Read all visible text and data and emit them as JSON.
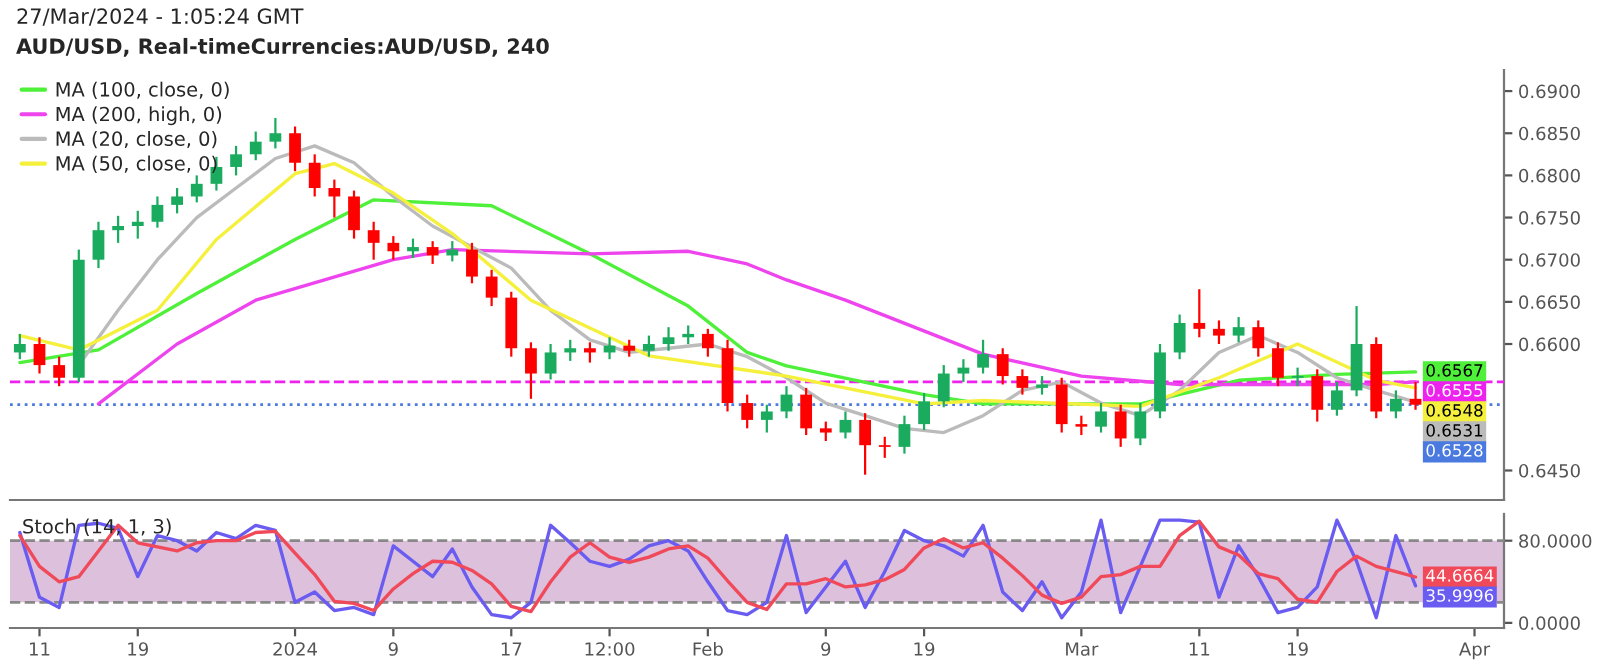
{
  "chart_data": [
    {
      "type": "candlestick",
      "title": "AUD/USD, Real-timeCurrencies:AUD/USD, 240",
      "subtitle": "27/Mar/2024 - 1:05:24 GMT",
      "categories": [
        null,
        null,
        null,
        null,
        null,
        null,
        null,
        null,
        null,
        null,
        null,
        null,
        null,
        null,
        null,
        null,
        null,
        null,
        null,
        null,
        null,
        null,
        null,
        null,
        null,
        null,
        null,
        null,
        null,
        null,
        null,
        null,
        null,
        null,
        null,
        null,
        null,
        null,
        null,
        null,
        null,
        null,
        null,
        null,
        null,
        null,
        null,
        null,
        null,
        null,
        null,
        null,
        null,
        null,
        null,
        null,
        null,
        null,
        null,
        null,
        null,
        null,
        null,
        null,
        null,
        null,
        null,
        null,
        null,
        null,
        null,
        null,
        null,
        null,
        null,
        null
      ],
      "ohlc": [
        [
          0.659,
          0.6612,
          0.6582,
          0.66
        ],
        [
          0.66,
          0.6608,
          0.6565,
          0.6575
        ],
        [
          0.6575,
          0.6585,
          0.655,
          0.656
        ],
        [
          0.656,
          0.6712,
          0.6555,
          0.67
        ],
        [
          0.67,
          0.6745,
          0.669,
          0.6735
        ],
        [
          0.6735,
          0.6752,
          0.672,
          0.674
        ],
        [
          0.674,
          0.6758,
          0.6725,
          0.6745
        ],
        [
          0.6745,
          0.6775,
          0.6738,
          0.6765
        ],
        [
          0.6765,
          0.6785,
          0.6755,
          0.6775
        ],
        [
          0.6775,
          0.68,
          0.6768,
          0.679
        ],
        [
          0.679,
          0.6822,
          0.6782,
          0.681
        ],
        [
          0.681,
          0.6835,
          0.68,
          0.6825
        ],
        [
          0.6825,
          0.6852,
          0.6818,
          0.684
        ],
        [
          0.684,
          0.6868,
          0.6832,
          0.685
        ],
        [
          0.685,
          0.6858,
          0.6805,
          0.6815
        ],
        [
          0.6815,
          0.6825,
          0.6775,
          0.6785
        ],
        [
          0.6785,
          0.6795,
          0.675,
          0.6775
        ],
        [
          0.6775,
          0.6782,
          0.6725,
          0.6735
        ],
        [
          0.6735,
          0.6745,
          0.67,
          0.672
        ],
        [
          0.672,
          0.6728,
          0.67,
          0.671
        ],
        [
          0.671,
          0.6725,
          0.6702,
          0.6715
        ],
        [
          0.6715,
          0.6722,
          0.6695,
          0.6705
        ],
        [
          0.6705,
          0.6722,
          0.6698,
          0.6712
        ],
        [
          0.6712,
          0.672,
          0.6672,
          0.668
        ],
        [
          0.668,
          0.6688,
          0.6645,
          0.6655
        ],
        [
          0.6655,
          0.6662,
          0.6585,
          0.6595
        ],
        [
          0.6595,
          0.6602,
          0.6535,
          0.6565
        ],
        [
          0.6565,
          0.66,
          0.6558,
          0.659
        ],
        [
          0.659,
          0.6605,
          0.658,
          0.6595
        ],
        [
          0.6595,
          0.6602,
          0.6578,
          0.659
        ],
        [
          0.659,
          0.6608,
          0.6582,
          0.6598
        ],
        [
          0.6598,
          0.6605,
          0.6585,
          0.6592
        ],
        [
          0.6592,
          0.661,
          0.6585,
          0.66
        ],
        [
          0.66,
          0.662,
          0.6592,
          0.6608
        ],
        [
          0.6608,
          0.6622,
          0.66,
          0.6612
        ],
        [
          0.6612,
          0.6618,
          0.6585,
          0.6595
        ],
        [
          0.6595,
          0.6605,
          0.652,
          0.653
        ],
        [
          0.653,
          0.654,
          0.65,
          0.651
        ],
        [
          0.651,
          0.6528,
          0.6495,
          0.652
        ],
        [
          0.652,
          0.655,
          0.6512,
          0.654
        ],
        [
          0.654,
          0.6548,
          0.6492,
          0.65
        ],
        [
          0.65,
          0.6508,
          0.6485,
          0.6495
        ],
        [
          0.6495,
          0.652,
          0.6488,
          0.651
        ],
        [
          0.651,
          0.6518,
          0.6445,
          0.648
        ],
        [
          0.648,
          0.649,
          0.6465,
          0.6478
        ],
        [
          0.6478,
          0.6515,
          0.647,
          0.6505
        ],
        [
          0.6505,
          0.6542,
          0.6498,
          0.6532
        ],
        [
          0.6532,
          0.6575,
          0.6525,
          0.6565
        ],
        [
          0.6565,
          0.6582,
          0.6555,
          0.6572
        ],
        [
          0.6572,
          0.6605,
          0.6565,
          0.6588
        ],
        [
          0.6588,
          0.6595,
          0.6552,
          0.6562
        ],
        [
          0.6562,
          0.657,
          0.654,
          0.6548
        ],
        [
          0.6548,
          0.6562,
          0.654,
          0.6552
        ],
        [
          0.6552,
          0.656,
          0.6495,
          0.6505
        ],
        [
          0.6505,
          0.6515,
          0.6492,
          0.6502
        ],
        [
          0.6502,
          0.653,
          0.6495,
          0.652
        ],
        [
          0.652,
          0.6528,
          0.6478,
          0.6488
        ],
        [
          0.6488,
          0.653,
          0.648,
          0.652
        ],
        [
          0.652,
          0.66,
          0.6512,
          0.659
        ],
        [
          0.659,
          0.6635,
          0.6582,
          0.6625
        ],
        [
          0.6625,
          0.6665,
          0.6608,
          0.6618
        ],
        [
          0.6618,
          0.6628,
          0.66,
          0.661
        ],
        [
          0.661,
          0.6632,
          0.6602,
          0.662
        ],
        [
          0.662,
          0.6628,
          0.6585,
          0.6595
        ],
        [
          0.6595,
          0.6602,
          0.655,
          0.656
        ],
        [
          0.656,
          0.6572,
          0.655,
          0.6562
        ],
        [
          0.6562,
          0.657,
          0.6508,
          0.6522
        ],
        [
          0.6522,
          0.6555,
          0.6515,
          0.6545
        ],
        [
          0.6545,
          0.6645,
          0.6538,
          0.66
        ],
        [
          0.66,
          0.6608,
          0.6512,
          0.652
        ],
        [
          0.652,
          0.6545,
          0.6512,
          0.6535
        ],
        [
          0.6535,
          0.6555,
          0.6522,
          0.6528
        ],
        null,
        null,
        null,
        null
      ],
      "colors": [
        "#1aab5f",
        "#ff0000",
        "#ff0000",
        "#1aab5f",
        "#1aab5f",
        "#1aab5f",
        "#1aab5f",
        "#1aab5f",
        "#1aab5f",
        "#1aab5f",
        "#1aab5f",
        "#1aab5f",
        "#1aab5f",
        "#1aab5f",
        "#ff0000",
        "#ff0000",
        "#ff0000",
        "#ff0000",
        "#ff0000",
        "#ff0000",
        "#1aab5f",
        "#ff0000",
        "#1aab5f",
        "#ff0000",
        "#ff0000",
        "#ff0000",
        "#ff0000",
        "#1aab5f",
        "#1aab5f",
        "#ff0000",
        "#1aab5f",
        "#ff0000",
        "#1aab5f",
        "#1aab5f",
        "#1aab5f",
        "#ff0000",
        "#ff0000",
        "#ff0000",
        "#1aab5f",
        "#1aab5f",
        "#ff0000",
        "#ff0000",
        "#1aab5f",
        "#ff0000",
        "#ff0000",
        "#1aab5f",
        "#1aab5f",
        "#1aab5f",
        "#1aab5f",
        "#1aab5f",
        "#ff0000",
        "#ff0000",
        "#1aab5f",
        "#ff0000",
        "#ff0000",
        "#1aab5f",
        "#ff0000",
        "#1aab5f",
        "#1aab5f",
        "#1aab5f",
        "#ff0000",
        "#ff0000",
        "#1aab5f",
        "#ff0000",
        "#ff0000",
        "#1aab5f",
        "#ff0000",
        "#1aab5f",
        "#1aab5f",
        "#ff0000",
        "#1aab5f",
        "#ff0000",
        null,
        null,
        null,
        null
      ],
      "series": [
        {
          "type": "line",
          "name": "MA (100, close, 0)",
          "color": "#4ef03a",
          "values": [
            0.6578,
            null,
            null,
            null,
            0.6593,
            null,
            null,
            null,
            null,
            0.666,
            null,
            null,
            null,
            null,
            0.6724,
            null,
            null,
            null,
            0.6771,
            null,
            null,
            null,
            null,
            null,
            0.6764,
            null,
            null,
            null,
            null,
            0.6707,
            null,
            null,
            null,
            null,
            0.6645,
            null,
            null,
            0.659,
            null,
            0.6574,
            null,
            null,
            null,
            null,
            null,
            null,
            0.654,
            null,
            null,
            0.6529,
            null,
            null,
            null,
            null,
            null,
            null,
            null,
            0.6529,
            null,
            null,
            null,
            null,
            0.6557,
            null,
            null,
            null,
            null,
            0.6564,
            null,
            null,
            null,
            0.6567,
            null,
            null,
            null,
            null
          ],
          "value_labels": [
            null,
            null,
            null,
            null,
            null,
            null,
            null,
            null,
            null,
            null,
            null,
            null,
            null,
            null,
            null,
            null,
            null,
            null,
            null,
            null,
            null,
            null,
            null,
            null,
            null,
            null,
            null,
            null,
            null,
            null,
            null,
            null,
            null,
            null,
            null,
            null,
            null,
            null,
            null,
            null,
            null,
            null,
            null,
            null,
            null,
            null,
            null,
            null,
            null,
            null,
            null,
            null,
            null,
            null,
            null,
            null,
            null,
            null,
            null,
            null,
            null,
            null,
            null,
            null,
            null,
            null,
            null,
            null,
            null,
            null,
            null,
            "0.6567",
            null,
            null,
            null,
            null
          ]
        },
        {
          "type": "line",
          "name": "MA (200, high, 0)",
          "color": "#ee44ee",
          "values": [
            null,
            null,
            null,
            null,
            0.6529,
            null,
            null,
            null,
            0.66,
            null,
            null,
            null,
            0.6652,
            null,
            null,
            null,
            null,
            null,
            null,
            0.67,
            null,
            null,
            0.6712,
            null,
            null,
            null,
            null,
            null,
            null,
            0.6707,
            null,
            null,
            null,
            null,
            0.671,
            null,
            null,
            0.6695,
            null,
            0.6676,
            null,
            null,
            0.6652,
            null,
            null,
            null,
            null,
            null,
            null,
            0.6588,
            null,
            null,
            null,
            null,
            0.6562,
            null,
            null,
            null,
            null,
            0.6552,
            null,
            null,
            null,
            null,
            null,
            null,
            null,
            null,
            null,
            0.6552,
            null,
            0.6555,
            null,
            null,
            null,
            null
          ]
        },
        {
          "type": "line",
          "name": "MA (20, close, 0)",
          "color": "#bbbbbb",
          "values": [
            null,
            null,
            null,
            0.6575,
            null,
            0.664,
            null,
            0.67,
            null,
            0.675,
            null,
            0.6785,
            null,
            0.682,
            null,
            0.6835,
            null,
            0.6815,
            null,
            0.6775,
            null,
            0.674,
            null,
            0.6715,
            null,
            0.669,
            null,
            0.664,
            null,
            0.6605,
            null,
            0.659,
            null,
            0.6595,
            null,
            0.66,
            null,
            0.6585,
            null,
            0.656,
            null,
            0.653,
            null,
            0.6515,
            null,
            0.65,
            null,
            0.6495,
            null,
            0.6515,
            null,
            0.6545,
            null,
            0.6555,
            null,
            0.653,
            null,
            0.6515,
            null,
            0.6545,
            null,
            0.659,
            null,
            0.661,
            null,
            0.659,
            null,
            0.656,
            null,
            0.6545,
            null,
            0.6531,
            null,
            null,
            null,
            null
          ],
          "value_labels": [
            null,
            null,
            null,
            null,
            null,
            null,
            null,
            null,
            null,
            null,
            null,
            null,
            null,
            null,
            null,
            null,
            null,
            null,
            null,
            null,
            null,
            null,
            null,
            null,
            null,
            null,
            null,
            null,
            null,
            null,
            null,
            null,
            null,
            null,
            null,
            null,
            null,
            null,
            null,
            null,
            null,
            null,
            null,
            null,
            null,
            null,
            null,
            null,
            null,
            null,
            null,
            null,
            null,
            null,
            null,
            null,
            null,
            null,
            null,
            null,
            null,
            null,
            null,
            null,
            null,
            null,
            null,
            null,
            null,
            null,
            null,
            "0.6531",
            null,
            null,
            null,
            null
          ]
        },
        {
          "type": "line",
          "name": "MA (50, close, 0)",
          "color": "#f5f03c",
          "values": [
            0.661,
            null,
            null,
            0.6593,
            null,
            null,
            null,
            0.664,
            null,
            null,
            0.6724,
            null,
            null,
            null,
            0.6802,
            null,
            0.6814,
            null,
            null,
            0.6779,
            null,
            null,
            0.6731,
            null,
            null,
            null,
            0.6652,
            null,
            null,
            null,
            null,
            null,
            0.6586,
            null,
            null,
            null,
            null,
            null,
            null,
            0.6562,
            null,
            null,
            null,
            null,
            null,
            null,
            0.6529,
            null,
            null,
            0.6533,
            null,
            null,
            null,
            null,
            null,
            null,
            null,
            0.6526,
            null,
            null,
            null,
            0.656,
            null,
            null,
            null,
            0.66,
            null,
            null,
            null,
            0.6557,
            null,
            0.6548,
            null,
            null,
            null,
            null
          ],
          "value_labels": [
            null,
            null,
            null,
            null,
            null,
            null,
            null,
            null,
            null,
            null,
            null,
            null,
            null,
            null,
            null,
            null,
            null,
            null,
            null,
            null,
            null,
            null,
            null,
            null,
            null,
            null,
            null,
            null,
            null,
            null,
            null,
            null,
            null,
            null,
            null,
            null,
            null,
            null,
            null,
            null,
            null,
            null,
            null,
            null,
            null,
            null,
            null,
            null,
            null,
            null,
            null,
            null,
            null,
            null,
            null,
            null,
            null,
            null,
            null,
            null,
            null,
            null,
            null,
            null,
            null,
            null,
            null,
            null,
            null,
            null,
            null,
            "0.6548",
            null,
            null,
            null,
            null
          ]
        }
      ],
      "ref_lines": [
        {
          "axis": "y",
          "value": 0.6555,
          "label": "0.6555",
          "color": "#ee22ee",
          "line_style": "dashed"
        },
        {
          "axis": "y",
          "value": 0.6528,
          "label": "0.6528",
          "color": "#4a7ae0",
          "line_style": "dotted"
        }
      ],
      "ylim": [
        0.6415,
        0.6925
      ],
      "yticks": [
        {
          "value": 0.69,
          "label": "0.6900"
        },
        {
          "value": 0.685,
          "label": "0.6850"
        },
        {
          "value": 0.68,
          "label": "0.6800"
        },
        {
          "value": 0.675,
          "label": "0.6750"
        },
        {
          "value": 0.67,
          "label": "0.6700"
        },
        {
          "value": 0.665,
          "label": "0.6650"
        },
        {
          "value": 0.66,
          "label": "0.6600"
        },
        {
          "value": 0.645,
          "label": "0.6450"
        }
      ],
      "legend": "top left"
    },
    {
      "type": "line",
      "title": "Stoch (14, 1, 3)",
      "categories": [
        null,
        "11",
        null,
        null,
        null,
        null,
        "19",
        null,
        null,
        null,
        null,
        null,
        null,
        null,
        "2024",
        null,
        null,
        null,
        null,
        "9",
        null,
        null,
        null,
        null,
        null,
        "17",
        null,
        null,
        null,
        null,
        "12:00",
        null,
        null,
        null,
        null,
        "Feb",
        null,
        null,
        null,
        null,
        null,
        "9",
        null,
        null,
        null,
        null,
        "19",
        null,
        null,
        null,
        null,
        null,
        null,
        null,
        "Mar",
        null,
        null,
        null,
        null,
        null,
        "11",
        null,
        null,
        null,
        null,
        "19",
        null,
        null,
        null,
        null,
        null,
        null,
        null,
        null,
        "Apr",
        null
      ],
      "series": [
        {
          "color": "#6a5cf0",
          "values": [
            88,
            25,
            15,
            95,
            97,
            92,
            45,
            85,
            80,
            70,
            88,
            82,
            95,
            90,
            20,
            30,
            12,
            15,
            8,
            75,
            60,
            45,
            72,
            35,
            8,
            5,
            20,
            95,
            78,
            60,
            55,
            62,
            75,
            80,
            70,
            40,
            12,
            8,
            20,
            85,
            10,
            35,
            60,
            15,
            50,
            90,
            80,
            75,
            65,
            95,
            30,
            12,
            40,
            5,
            30,
            100,
            10,
            55,
            100,
            100,
            98,
            25,
            75,
            45,
            10,
            15,
            35,
            100,
            60,
            5,
            85,
            35.9996,
            null,
            null,
            null,
            null
          ],
          "value_labels": [
            null,
            null,
            null,
            null,
            null,
            null,
            null,
            null,
            null,
            null,
            null,
            null,
            null,
            null,
            null,
            null,
            null,
            null,
            null,
            null,
            null,
            null,
            null,
            null,
            null,
            null,
            null,
            null,
            null,
            null,
            null,
            null,
            null,
            null,
            null,
            null,
            null,
            null,
            null,
            null,
            null,
            null,
            null,
            null,
            null,
            null,
            null,
            null,
            null,
            null,
            null,
            null,
            null,
            null,
            null,
            null,
            null,
            null,
            null,
            null,
            null,
            null,
            null,
            null,
            null,
            null,
            null,
            null,
            null,
            null,
            null,
            "35.9996",
            null,
            null,
            null,
            null
          ]
        },
        {
          "color": "#f04a5a",
          "values": [
            85,
            55,
            40,
            45,
            70,
            95,
            78,
            74,
            70,
            78,
            80,
            80,
            88,
            89,
            68,
            47,
            21,
            19,
            12,
            33,
            48,
            60,
            59,
            51,
            38,
            16,
            11,
            40,
            64,
            78,
            64,
            59,
            64,
            72,
            75,
            63,
            41,
            20,
            13,
            38,
            38,
            43,
            35,
            37,
            42,
            52,
            73,
            82,
            73,
            78,
            63,
            46,
            27,
            19,
            25,
            45,
            47,
            55,
            55,
            85,
            99,
            74,
            66,
            48,
            43,
            23,
            20,
            50,
            65,
            55,
            50,
            44.6664,
            null,
            null,
            null,
            null
          ],
          "value_labels": [
            null,
            null,
            null,
            null,
            null,
            null,
            null,
            null,
            null,
            null,
            null,
            null,
            null,
            null,
            null,
            null,
            null,
            null,
            null,
            null,
            null,
            null,
            null,
            null,
            null,
            null,
            null,
            null,
            null,
            null,
            null,
            null,
            null,
            null,
            null,
            null,
            null,
            null,
            null,
            null,
            null,
            null,
            null,
            null,
            null,
            null,
            null,
            null,
            null,
            null,
            null,
            null,
            null,
            null,
            null,
            null,
            null,
            null,
            null,
            null,
            null,
            null,
            null,
            null,
            null,
            null,
            null,
            null,
            null,
            null,
            null,
            "44.6664",
            null,
            null,
            null,
            null
          ]
        }
      ],
      "bands": [
        {
          "axis": "y",
          "from": 20,
          "to": 80,
          "color": "#dcc0dc"
        }
      ],
      "ref_lines": [
        {
          "axis": "y",
          "value": 80,
          "label": null,
          "color": "#888888",
          "line_style": "dashed"
        },
        {
          "axis": "y",
          "value": 20,
          "label": null,
          "color": "#888888",
          "line_style": "dashed"
        }
      ],
      "ylim": [
        -5,
        106
      ],
      "yticks": [
        {
          "value": 0,
          "label": "0.0000"
        },
        {
          "value": 80,
          "label": "80.0000"
        }
      ]
    }
  ]
}
